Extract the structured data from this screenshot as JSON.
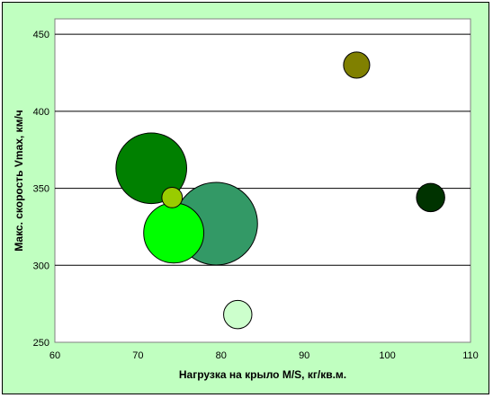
{
  "chart_data": {
    "type": "scatter",
    "subtype": "bubble",
    "title": "",
    "xlabel": "Нагрузка на крыло M/S, кг/кв.м.",
    "ylabel": "Макс. скорость Vmax, км/ч",
    "xlim": [
      60,
      110
    ],
    "ylim": [
      250,
      460
    ],
    "x_ticks": [
      "60",
      "70",
      "80",
      "90",
      "100",
      "110"
    ],
    "y_ticks": [
      "250",
      "300",
      "350",
      "400",
      "450"
    ],
    "grid": "horizontal",
    "legend": "none",
    "plot_background": "#ffffff",
    "chart_background": "#c0ffc0",
    "points": [
      {
        "x": 71.6,
        "y": 363,
        "size": 1.0,
        "color": "#008000"
      },
      {
        "x": 79.4,
        "y": 327,
        "size": 1.17,
        "color": "#339966"
      },
      {
        "x": 74.3,
        "y": 321,
        "size": 0.85,
        "color": "#00ff00"
      },
      {
        "x": 74.1,
        "y": 344,
        "size": 0.29,
        "color": "#99cc00"
      },
      {
        "x": 82.0,
        "y": 268,
        "size": 0.4,
        "color": "#ccffcc"
      },
      {
        "x": 96.3,
        "y": 430,
        "size": 0.37,
        "color": "#808000"
      },
      {
        "x": 105.2,
        "y": 344,
        "size": 0.4,
        "color": "#003300"
      }
    ]
  }
}
